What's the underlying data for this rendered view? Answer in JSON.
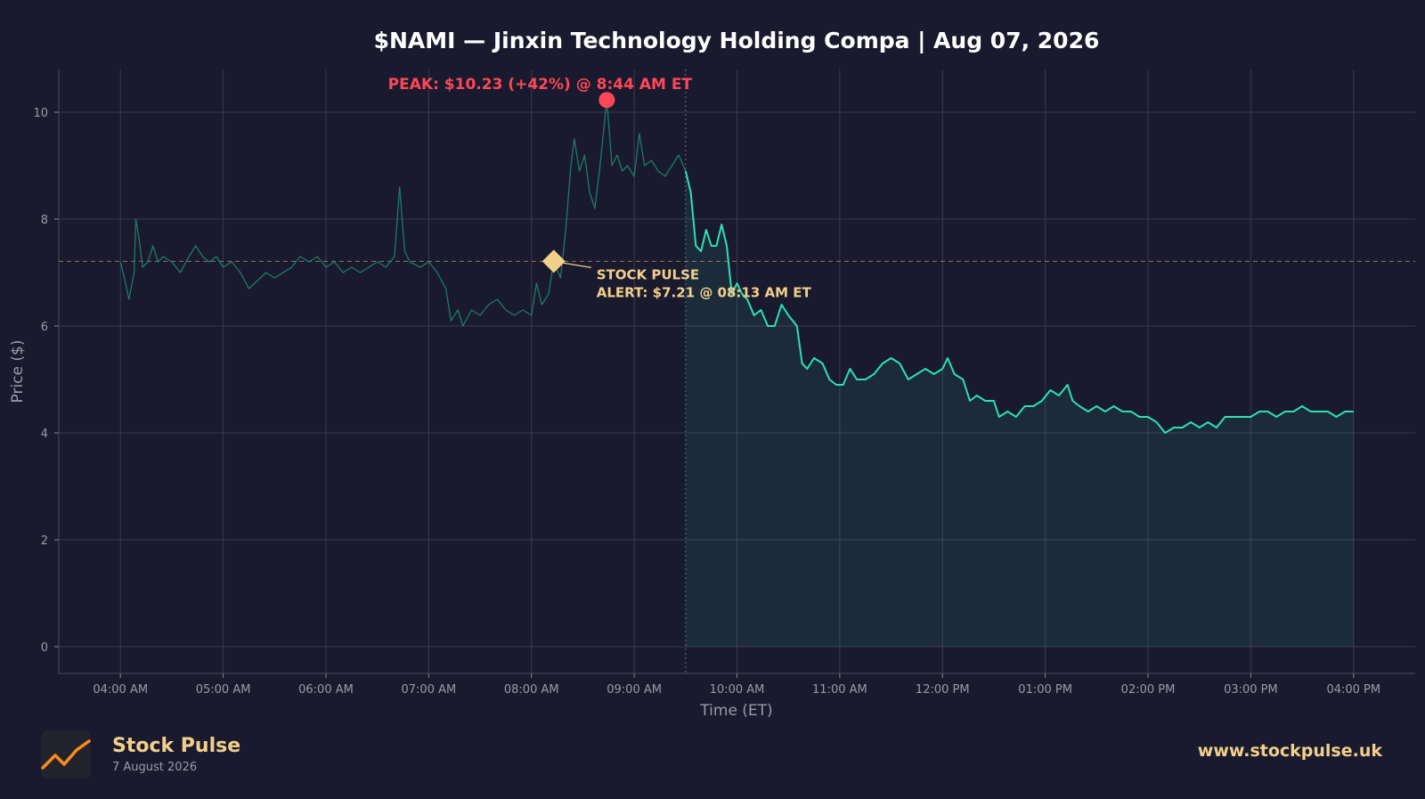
{
  "chart_data": {
    "type": "line",
    "title": "$NAMI — Jinxin Technology Holding Compa  |  Aug 07, 2026",
    "xlabel": "Time (ET)",
    "ylabel": "Price ($)",
    "xlim": [
      "03:24 AM",
      "04:36 PM"
    ],
    "ylim": [
      -0.5,
      10.8
    ],
    "x_ticks": [
      "04:00 AM",
      "05:00 AM",
      "06:00 AM",
      "07:00 AM",
      "08:00 AM",
      "09:00 AM",
      "10:00 AM",
      "11:00 AM",
      "12:00 PM",
      "01:00 PM",
      "02:00 PM",
      "03:00 PM",
      "04:00 PM"
    ],
    "y_ticks": [
      0,
      2,
      4,
      6,
      8,
      10
    ],
    "grid": true,
    "market_open": "09:30 AM",
    "reference_level": 7.21,
    "series": [
      {
        "segment": "pre-market",
        "color": "#1f7a68",
        "points": [
          [
            "04:00 AM",
            7.2
          ],
          [
            "04:03 AM",
            6.8
          ],
          [
            "04:05 AM",
            6.5
          ],
          [
            "04:08 AM",
            7.0
          ],
          [
            "04:09 AM",
            8.0
          ],
          [
            "04:11 AM",
            7.6
          ],
          [
            "04:13 AM",
            7.1
          ],
          [
            "04:16 AM",
            7.2
          ],
          [
            "04:19 AM",
            7.5
          ],
          [
            "04:22 AM",
            7.2
          ],
          [
            "04:25 AM",
            7.3
          ],
          [
            "04:30 AM",
            7.2
          ],
          [
            "04:35 AM",
            7.0
          ],
          [
            "04:40 AM",
            7.3
          ],
          [
            "04:44 AM",
            7.5
          ],
          [
            "04:48 AM",
            7.3
          ],
          [
            "04:52 AM",
            7.2
          ],
          [
            "04:56 AM",
            7.3
          ],
          [
            "05:00 AM",
            7.1
          ],
          [
            "05:05 AM",
            7.2
          ],
          [
            "05:10 AM",
            7.0
          ],
          [
            "05:15 AM",
            6.7
          ],
          [
            "05:20 AM",
            6.85
          ],
          [
            "05:25 AM",
            7.0
          ],
          [
            "05:30 AM",
            6.9
          ],
          [
            "05:35 AM",
            7.0
          ],
          [
            "05:40 AM",
            7.1
          ],
          [
            "05:45 AM",
            7.3
          ],
          [
            "05:50 AM",
            7.2
          ],
          [
            "05:55 AM",
            7.3
          ],
          [
            "06:00 AM",
            7.1
          ],
          [
            "06:05 AM",
            7.2
          ],
          [
            "06:10 AM",
            7.0
          ],
          [
            "06:15 AM",
            7.1
          ],
          [
            "06:20 AM",
            7.0
          ],
          [
            "06:25 AM",
            7.1
          ],
          [
            "06:30 AM",
            7.2
          ],
          [
            "06:35 AM",
            7.1
          ],
          [
            "06:40 AM",
            7.3
          ],
          [
            "06:43 AM",
            8.6
          ],
          [
            "06:46 AM",
            7.4
          ],
          [
            "06:49 AM",
            7.2
          ],
          [
            "06:55 AM",
            7.1
          ],
          [
            "07:00 AM",
            7.2
          ],
          [
            "07:05 AM",
            7.0
          ],
          [
            "07:10 AM",
            6.7
          ],
          [
            "07:13 AM",
            6.1
          ],
          [
            "07:17 AM",
            6.3
          ],
          [
            "07:20 AM",
            6.0
          ],
          [
            "07:25 AM",
            6.3
          ],
          [
            "07:30 AM",
            6.2
          ],
          [
            "07:35 AM",
            6.4
          ],
          [
            "07:40 AM",
            6.5
          ],
          [
            "07:45 AM",
            6.3
          ],
          [
            "07:50 AM",
            6.2
          ],
          [
            "07:55 AM",
            6.3
          ],
          [
            "08:00 AM",
            6.2
          ],
          [
            "08:03 AM",
            6.8
          ],
          [
            "08:06 AM",
            6.4
          ],
          [
            "08:10 AM",
            6.6
          ],
          [
            "08:13 AM",
            7.21
          ],
          [
            "08:17 AM",
            6.9
          ],
          [
            "08:20 AM",
            7.8
          ],
          [
            "08:23 AM",
            9.0
          ],
          [
            "08:25 AM",
            9.5
          ],
          [
            "08:28 AM",
            8.9
          ],
          [
            "08:31 AM",
            9.2
          ],
          [
            "08:34 AM",
            8.5
          ],
          [
            "08:37 AM",
            8.2
          ],
          [
            "08:40 AM",
            9.0
          ],
          [
            "08:44 AM",
            10.23
          ],
          [
            "08:47 AM",
            9.0
          ],
          [
            "08:50 AM",
            9.2
          ],
          [
            "08:53 AM",
            8.9
          ],
          [
            "08:56 AM",
            9.0
          ],
          [
            "09:00 AM",
            8.8
          ],
          [
            "09:03 AM",
            9.6
          ],
          [
            "09:06 AM",
            9.0
          ],
          [
            "09:10 AM",
            9.1
          ],
          [
            "09:14 AM",
            8.9
          ],
          [
            "09:18 AM",
            8.8
          ],
          [
            "09:22 AM",
            9.0
          ],
          [
            "09:26 AM",
            9.2
          ],
          [
            "09:30 AM",
            8.9
          ]
        ]
      },
      {
        "segment": "regular-session",
        "color": "#2de0b4",
        "points": [
          [
            "09:30 AM",
            8.9
          ],
          [
            "09:33 AM",
            8.5
          ],
          [
            "09:36 AM",
            7.5
          ],
          [
            "09:39 AM",
            7.4
          ],
          [
            "09:42 AM",
            7.8
          ],
          [
            "09:45 AM",
            7.5
          ],
          [
            "09:48 AM",
            7.5
          ],
          [
            "09:51 AM",
            7.9
          ],
          [
            "09:54 AM",
            7.5
          ],
          [
            "09:57 AM",
            6.6
          ],
          [
            "10:00 AM",
            6.8
          ],
          [
            "10:03 AM",
            6.6
          ],
          [
            "10:06 AM",
            6.5
          ],
          [
            "10:10 AM",
            6.2
          ],
          [
            "10:14 AM",
            6.3
          ],
          [
            "10:18 AM",
            6.0
          ],
          [
            "10:22 AM",
            6.0
          ],
          [
            "10:26 AM",
            6.4
          ],
          [
            "10:30 AM",
            6.2
          ],
          [
            "10:35 AM",
            6.0
          ],
          [
            "10:38 AM",
            5.3
          ],
          [
            "10:41 AM",
            5.2
          ],
          [
            "10:45 AM",
            5.4
          ],
          [
            "10:50 AM",
            5.3
          ],
          [
            "10:54 AM",
            5.0
          ],
          [
            "10:58 AM",
            4.9
          ],
          [
            "11:02 AM",
            4.9
          ],
          [
            "11:06 AM",
            5.2
          ],
          [
            "11:10 AM",
            5.0
          ],
          [
            "11:15 AM",
            5.0
          ],
          [
            "11:20 AM",
            5.1
          ],
          [
            "11:25 AM",
            5.3
          ],
          [
            "11:30 AM",
            5.4
          ],
          [
            "11:35 AM",
            5.3
          ],
          [
            "11:40 AM",
            5.0
          ],
          [
            "11:45 AM",
            5.1
          ],
          [
            "11:50 AM",
            5.2
          ],
          [
            "11:55 AM",
            5.1
          ],
          [
            "12:00 PM",
            5.2
          ],
          [
            "12:03 PM",
            5.4
          ],
          [
            "12:07 PM",
            5.1
          ],
          [
            "12:12 PM",
            5.0
          ],
          [
            "12:16 PM",
            4.6
          ],
          [
            "12:20 PM",
            4.7
          ],
          [
            "12:25 PM",
            4.6
          ],
          [
            "12:30 PM",
            4.6
          ],
          [
            "12:33 PM",
            4.3
          ],
          [
            "12:38 PM",
            4.4
          ],
          [
            "12:43 PM",
            4.3
          ],
          [
            "12:48 PM",
            4.5
          ],
          [
            "12:53 PM",
            4.5
          ],
          [
            "12:58 PM",
            4.6
          ],
          [
            "01:03 PM",
            4.8
          ],
          [
            "01:08 PM",
            4.7
          ],
          [
            "01:13 PM",
            4.9
          ],
          [
            "01:16 PM",
            4.6
          ],
          [
            "01:20 PM",
            4.5
          ],
          [
            "01:25 PM",
            4.4
          ],
          [
            "01:30 PM",
            4.5
          ],
          [
            "01:35 PM",
            4.4
          ],
          [
            "01:40 PM",
            4.5
          ],
          [
            "01:45 PM",
            4.4
          ],
          [
            "01:50 PM",
            4.4
          ],
          [
            "01:55 PM",
            4.3
          ],
          [
            "02:00 PM",
            4.3
          ],
          [
            "02:05 PM",
            4.2
          ],
          [
            "02:10 PM",
            4.0
          ],
          [
            "02:15 PM",
            4.1
          ],
          [
            "02:20 PM",
            4.1
          ],
          [
            "02:25 PM",
            4.2
          ],
          [
            "02:30 PM",
            4.1
          ],
          [
            "02:35 PM",
            4.2
          ],
          [
            "02:40 PM",
            4.1
          ],
          [
            "02:45 PM",
            4.3
          ],
          [
            "02:50 PM",
            4.3
          ],
          [
            "02:55 PM",
            4.3
          ],
          [
            "03:00 PM",
            4.3
          ],
          [
            "03:05 PM",
            4.4
          ],
          [
            "03:10 PM",
            4.4
          ],
          [
            "03:15 PM",
            4.3
          ],
          [
            "03:20 PM",
            4.4
          ],
          [
            "03:25 PM",
            4.4
          ],
          [
            "03:30 PM",
            4.5
          ],
          [
            "03:35 PM",
            4.4
          ],
          [
            "03:40 PM",
            4.4
          ],
          [
            "03:45 PM",
            4.4
          ],
          [
            "03:50 PM",
            4.3
          ],
          [
            "03:55 PM",
            4.4
          ],
          [
            "04:00 PM",
            4.4
          ]
        ]
      }
    ],
    "annotations": [
      {
        "kind": "peak",
        "text": "PEAK: $10.23 (+42%) @ 8:44 AM ET",
        "x": "08:44 AM",
        "y": 10.23,
        "color": "#ff4757"
      },
      {
        "kind": "alert",
        "lines": [
          "STOCK PULSE",
          "ALERT: $7.21 @ 08:13 AM ET"
        ],
        "x": "08:13 AM",
        "y": 7.21,
        "color": "#f2d08b"
      }
    ]
  },
  "footer": {
    "brand_name": "Stock Pulse",
    "brand_date": "7 August 2026",
    "website": "www.stockpulse.uk",
    "logo_icon": "trend-line-icon"
  }
}
